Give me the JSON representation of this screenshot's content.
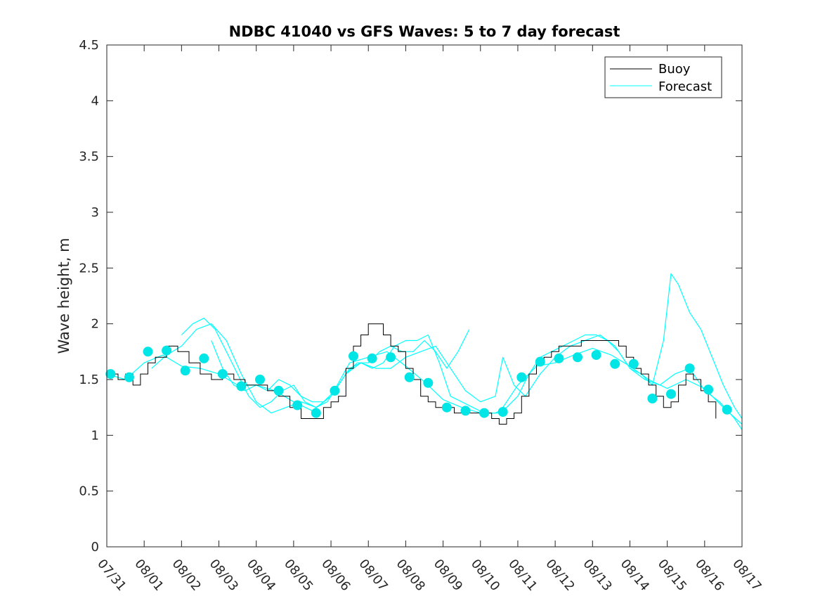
{
  "chart_data": {
    "type": "line",
    "title": "NDBC 41040 vs GFS Waves: 5 to 7 day forecast",
    "xlabel": "",
    "ylabel": "Wave height, m",
    "ylim": [
      0,
      4.5
    ],
    "xlim": [
      0,
      17
    ],
    "yticks": [
      0,
      0.5,
      1,
      1.5,
      2,
      2.5,
      3,
      3.5,
      4,
      4.5
    ],
    "ytick_labels": [
      "0",
      "0.5",
      "1",
      "1.5",
      "2",
      "2.5",
      "3",
      "3.5",
      "4",
      "4.5"
    ],
    "x_tick_labels": [
      "07/31",
      "08/01",
      "08/02",
      "08/03",
      "08/04",
      "08/05",
      "08/06",
      "08/07",
      "08/08",
      "08/09",
      "08/10",
      "08/11",
      "08/12",
      "08/13",
      "08/14",
      "08/15",
      "08/16",
      "08/17"
    ],
    "x_units": "days since 07/31 00:00",
    "legend": {
      "position": "top-right",
      "entries": [
        "Buoy",
        "Forecast"
      ]
    },
    "colors": {
      "buoy": "#000000",
      "forecast": "#00ffff",
      "markers": "#00e5e5",
      "axes": "#262626"
    },
    "series": [
      {
        "name": "Buoy",
        "color": "#000000",
        "x": [
          0.0,
          0.3,
          0.5,
          0.7,
          0.9,
          1.1,
          1.3,
          1.6,
          1.9,
          2.2,
          2.5,
          2.8,
          3.1,
          3.4,
          3.7,
          4.0,
          4.3,
          4.6,
          4.9,
          5.2,
          5.5,
          5.8,
          6.0,
          6.2,
          6.4,
          6.6,
          6.8,
          7.0,
          7.2,
          7.4,
          7.6,
          7.8,
          8.0,
          8.2,
          8.4,
          8.6,
          8.8,
          9.0,
          9.3,
          9.6,
          9.9,
          10.1,
          10.3,
          10.5,
          10.7,
          10.9,
          11.1,
          11.3,
          11.5,
          11.7,
          11.9,
          12.1,
          12.3,
          12.5,
          12.7,
          12.9,
          13.1,
          13.3,
          13.5,
          13.7,
          13.9,
          14.1,
          14.3,
          14.5,
          14.7,
          14.9,
          15.1,
          15.3,
          15.5,
          15.7,
          15.9,
          16.1,
          16.3
        ],
        "y": [
          1.55,
          1.5,
          1.55,
          1.45,
          1.55,
          1.65,
          1.7,
          1.8,
          1.75,
          1.65,
          1.55,
          1.5,
          1.55,
          1.5,
          1.45,
          1.45,
          1.4,
          1.35,
          1.25,
          1.15,
          1.15,
          1.25,
          1.3,
          1.35,
          1.6,
          1.8,
          1.9,
          2.0,
          2.0,
          1.9,
          1.8,
          1.75,
          1.6,
          1.5,
          1.35,
          1.3,
          1.25,
          1.25,
          1.2,
          1.2,
          1.2,
          1.2,
          1.15,
          1.1,
          1.15,
          1.2,
          1.35,
          1.55,
          1.65,
          1.7,
          1.75,
          1.8,
          1.8,
          1.8,
          1.85,
          1.85,
          1.85,
          1.85,
          1.85,
          1.8,
          1.7,
          1.6,
          1.55,
          1.45,
          1.35,
          1.25,
          1.3,
          1.45,
          1.55,
          1.5,
          1.4,
          1.3,
          1.15
        ]
      },
      {
        "name": "Forecast",
        "color": "#00ffff",
        "runs": [
          {
            "x": [
              0.0,
              0.5,
              1.0,
              1.5,
              2.0,
              2.5,
              3.0,
              3.5,
              4.0,
              4.5,
              5.0,
              5.5,
              6.0,
              6.5,
              7.0,
              7.5,
              8.0,
              8.5,
              9.0,
              9.5,
              10.0,
              10.5,
              11.0,
              11.5,
              12.0,
              12.5,
              13.0,
              13.5,
              14.0,
              14.5,
              15.0,
              15.5,
              16.0,
              16.5,
              17.0
            ],
            "y": [
              1.55,
              1.5,
              1.65,
              1.72,
              1.62,
              1.6,
              1.55,
              1.45,
              1.45,
              1.4,
              1.3,
              1.22,
              1.35,
              1.65,
              1.7,
              1.75,
              1.62,
              1.48,
              1.32,
              1.25,
              1.2,
              1.2,
              1.45,
              1.62,
              1.65,
              1.72,
              1.78,
              1.72,
              1.62,
              1.5,
              1.42,
              1.5,
              1.42,
              1.25,
              1.1
            ]
          },
          {
            "x": [
              1.2,
              1.6,
              2.0,
              2.4,
              2.8,
              3.2,
              3.6,
              4.0,
              4.4,
              4.8,
              5.2,
              5.6,
              6.0,
              6.4,
              6.8,
              7.2,
              7.6,
              8.0,
              8.4,
              8.8,
              9.2,
              9.6,
              10.0,
              10.4,
              10.6,
              10.9,
              11.2,
              11.6,
              12.0,
              12.4,
              12.8,
              13.2,
              13.6,
              14.0,
              14.4,
              14.8,
              15.2,
              15.6,
              16.0,
              16.4,
              16.8,
              17.0
            ],
            "y": [
              1.6,
              1.72,
              1.8,
              1.95,
              2.0,
              1.85,
              1.55,
              1.3,
              1.2,
              1.25,
              1.3,
              1.25,
              1.35,
              1.55,
              1.65,
              1.6,
              1.6,
              1.7,
              1.75,
              1.8,
              1.6,
              1.4,
              1.3,
              1.35,
              1.7,
              1.45,
              1.35,
              1.55,
              1.7,
              1.8,
              1.85,
              1.9,
              1.8,
              1.6,
              1.5,
              1.45,
              1.55,
              1.6,
              1.4,
              1.3,
              1.15,
              1.05
            ]
          },
          {
            "x": [
              2.0,
              2.3,
              2.6,
              2.9,
              3.2,
              3.5,
              3.8,
              4.1,
              4.4,
              4.7,
              5.0,
              5.3,
              5.6,
              5.9,
              6.2,
              6.5,
              6.8,
              7.1,
              7.4,
              7.7,
              8.0,
              8.3,
              8.6,
              8.9,
              9.2,
              9.5,
              9.8,
              10.1,
              10.4,
              10.7,
              11.0,
              11.3,
              11.6,
              11.9,
              12.2,
              12.5,
              12.8,
              13.1,
              13.4,
              13.7,
              14.0,
              14.3,
              14.6,
              14.9,
              15.1,
              15.3,
              15.6,
              15.9,
              16.2,
              16.5,
              16.8,
              17.0
            ],
            "y": [
              1.9,
              2.0,
              2.05,
              1.95,
              1.75,
              1.55,
              1.35,
              1.25,
              1.3,
              1.4,
              1.45,
              1.3,
              1.25,
              1.3,
              1.45,
              1.6,
              1.65,
              1.6,
              1.65,
              1.8,
              1.85,
              1.85,
              1.9,
              1.65,
              1.35,
              1.3,
              1.25,
              1.2,
              1.2,
              1.25,
              1.35,
              1.55,
              1.7,
              1.75,
              1.8,
              1.85,
              1.9,
              1.9,
              1.85,
              1.75,
              1.6,
              1.55,
              1.45,
              1.85,
              2.45,
              2.35,
              2.1,
              1.95,
              1.7,
              1.45,
              1.25,
              1.15
            ]
          },
          {
            "x": [
              2.8,
              3.1,
              3.4,
              3.7,
              4.0,
              4.3,
              4.6,
              4.9,
              5.2,
              5.5,
              5.8,
              6.1,
              6.4,
              6.7,
              7.0,
              7.3,
              7.6,
              7.9,
              8.2,
              8.5,
              8.8,
              9.1,
              9.4,
              9.7
            ],
            "y": [
              1.85,
              1.6,
              1.45,
              1.4,
              1.45,
              1.4,
              1.5,
              1.45,
              1.35,
              1.3,
              1.3,
              1.4,
              1.55,
              1.65,
              1.65,
              1.75,
              1.8,
              1.75,
              1.75,
              1.85,
              1.75,
              1.6,
              1.75,
              1.95
            ]
          }
        ],
        "markers": {
          "x": [
            0.1,
            0.6,
            1.1,
            1.6,
            2.1,
            2.6,
            3.1,
            3.6,
            4.1,
            4.6,
            5.1,
            5.6,
            6.1,
            6.6,
            7.1,
            7.6,
            8.1,
            8.6,
            9.1,
            9.6,
            10.1,
            10.6,
            11.1,
            11.6,
            12.1,
            12.6,
            13.1,
            13.6,
            14.1,
            14.6,
            15.1,
            15.6,
            16.1,
            16.6
          ],
          "y": [
            1.55,
            1.52,
            1.75,
            1.76,
            1.58,
            1.69,
            1.55,
            1.44,
            1.5,
            1.4,
            1.27,
            1.2,
            1.4,
            1.71,
            1.69,
            1.7,
            1.52,
            1.47,
            1.25,
            1.22,
            1.2,
            1.21,
            1.52,
            1.66,
            1.69,
            1.7,
            1.72,
            1.64,
            1.64,
            1.33,
            1.37,
            1.6,
            1.41,
            1.23
          ]
        }
      }
    ]
  }
}
